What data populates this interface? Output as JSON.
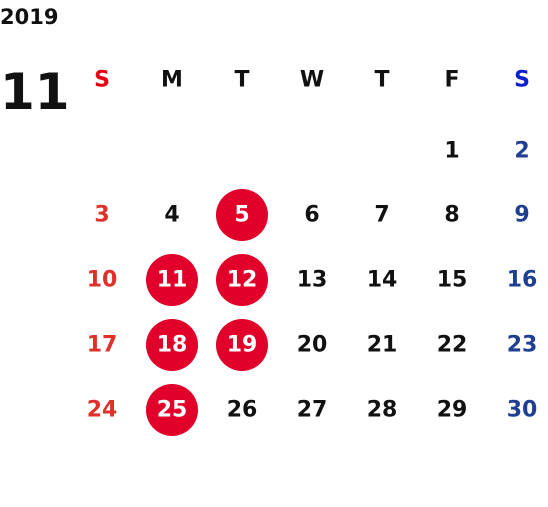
{
  "calendar": {
    "year": "2019",
    "month": "11",
    "weekdays": [
      "S",
      "M",
      "T",
      "W",
      "T",
      "F",
      "S"
    ],
    "weekday_colors": [
      "#e60012",
      "#111111",
      "#111111",
      "#111111",
      "#111111",
      "#111111",
      "#0a1ed2"
    ],
    "day_colors": [
      "#e0302a",
      "#111111",
      "#111111",
      "#111111",
      "#111111",
      "#111111",
      "#1f3f93"
    ],
    "highlight_color": "#e0002a",
    "weeks": [
      [
        null,
        null,
        null,
        null,
        null,
        {
          "label": "1"
        },
        {
          "label": "2"
        }
      ],
      [
        {
          "label": "3"
        },
        {
          "label": "4"
        },
        {
          "label": "5",
          "highlighted": true
        },
        {
          "label": "6"
        },
        {
          "label": "7"
        },
        {
          "label": "8"
        },
        {
          "label": "9"
        }
      ],
      [
        {
          "label": "10"
        },
        {
          "label": "11",
          "highlighted": true
        },
        {
          "label": "12",
          "highlighted": true
        },
        {
          "label": "13"
        },
        {
          "label": "14"
        },
        {
          "label": "15"
        },
        {
          "label": "16"
        }
      ],
      [
        {
          "label": "17"
        },
        {
          "label": "18",
          "highlighted": true
        },
        {
          "label": "19",
          "highlighted": true
        },
        {
          "label": "20"
        },
        {
          "label": "21"
        },
        {
          "label": "22"
        },
        {
          "label": "23"
        }
      ],
      [
        {
          "label": "24"
        },
        {
          "label": "25",
          "highlighted": true
        },
        {
          "label": "26"
        },
        {
          "label": "27"
        },
        {
          "label": "28"
        },
        {
          "label": "29"
        },
        {
          "label": "30"
        }
      ]
    ]
  }
}
